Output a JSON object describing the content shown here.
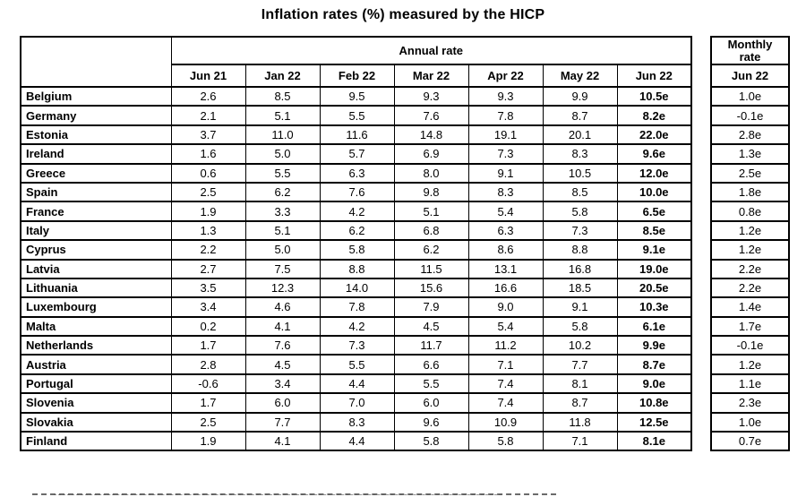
{
  "title": "Inflation rates (%) measured by the HICP",
  "table": {
    "annual_group_header": "Annual rate",
    "monthly_group_header_line1": "Monthly",
    "monthly_group_header_line2": "rate",
    "annual_months": [
      "Jun 21",
      "Jan 22",
      "Feb 22",
      "Mar 22",
      "Apr 22",
      "May 22",
      "Jun 22"
    ],
    "monthly_month": "Jun 22",
    "flash_estimate_suffix": "e",
    "rows": [
      {
        "country": "Belgium",
        "annual": [
          "2.6",
          "8.5",
          "9.5",
          "9.3",
          "9.3",
          "9.9",
          "10.5e"
        ],
        "monthly": "1.0e"
      },
      {
        "country": "Germany",
        "annual": [
          "2.1",
          "5.1",
          "5.5",
          "7.6",
          "7.8",
          "8.7",
          "8.2e"
        ],
        "monthly": "-0.1e"
      },
      {
        "country": "Estonia",
        "annual": [
          "3.7",
          "11.0",
          "11.6",
          "14.8",
          "19.1",
          "20.1",
          "22.0e"
        ],
        "monthly": "2.8e"
      },
      {
        "country": "Ireland",
        "annual": [
          "1.6",
          "5.0",
          "5.7",
          "6.9",
          "7.3",
          "8.3",
          "9.6e"
        ],
        "monthly": "1.3e"
      },
      {
        "country": "Greece",
        "annual": [
          "0.6",
          "5.5",
          "6.3",
          "8.0",
          "9.1",
          "10.5",
          "12.0e"
        ],
        "monthly": "2.5e"
      },
      {
        "country": "Spain",
        "annual": [
          "2.5",
          "6.2",
          "7.6",
          "9.8",
          "8.3",
          "8.5",
          "10.0e"
        ],
        "monthly": "1.8e"
      },
      {
        "country": "France",
        "annual": [
          "1.9",
          "3.3",
          "4.2",
          "5.1",
          "5.4",
          "5.8",
          "6.5e"
        ],
        "monthly": "0.8e"
      },
      {
        "country": "Italy",
        "annual": [
          "1.3",
          "5.1",
          "6.2",
          "6.8",
          "6.3",
          "7.3",
          "8.5e"
        ],
        "monthly": "1.2e"
      },
      {
        "country": "Cyprus",
        "annual": [
          "2.2",
          "5.0",
          "5.8",
          "6.2",
          "8.6",
          "8.8",
          "9.1e"
        ],
        "monthly": "1.2e"
      },
      {
        "country": "Latvia",
        "annual": [
          "2.7",
          "7.5",
          "8.8",
          "11.5",
          "13.1",
          "16.8",
          "19.0e"
        ],
        "monthly": "2.2e"
      },
      {
        "country": "Lithuania",
        "annual": [
          "3.5",
          "12.3",
          "14.0",
          "15.6",
          "16.6",
          "18.5",
          "20.5e"
        ],
        "monthly": "2.2e"
      },
      {
        "country": "Luxembourg",
        "annual": [
          "3.4",
          "4.6",
          "7.8",
          "7.9",
          "9.0",
          "9.1",
          "10.3e"
        ],
        "monthly": "1.4e"
      },
      {
        "country": "Malta",
        "annual": [
          "0.2",
          "4.1",
          "4.2",
          "4.5",
          "5.4",
          "5.8",
          "6.1e"
        ],
        "monthly": "1.7e"
      },
      {
        "country": "Netherlands",
        "annual": [
          "1.7",
          "7.6",
          "7.3",
          "11.7",
          "11.2",
          "10.2",
          "9.9e"
        ],
        "monthly": "-0.1e"
      },
      {
        "country": "Austria",
        "annual": [
          "2.8",
          "4.5",
          "5.5",
          "6.6",
          "7.1",
          "7.7",
          "8.7e"
        ],
        "monthly": "1.2e"
      },
      {
        "country": "Portugal",
        "annual": [
          "-0.6",
          "3.4",
          "4.4",
          "5.5",
          "7.4",
          "8.1",
          "9.0e"
        ],
        "monthly": "1.1e"
      },
      {
        "country": "Slovenia",
        "annual": [
          "1.7",
          "6.0",
          "7.0",
          "6.0",
          "7.4",
          "8.7",
          "10.8e"
        ],
        "monthly": "2.3e"
      },
      {
        "country": "Slovakia",
        "annual": [
          "2.5",
          "7.7",
          "8.3",
          "9.6",
          "10.9",
          "11.8",
          "12.5e"
        ],
        "monthly": "1.0e"
      },
      {
        "country": "Finland",
        "annual": [
          "1.9",
          "4.1",
          "4.4",
          "5.8",
          "5.8",
          "7.1",
          "8.1e"
        ],
        "monthly": "0.7e"
      }
    ]
  }
}
